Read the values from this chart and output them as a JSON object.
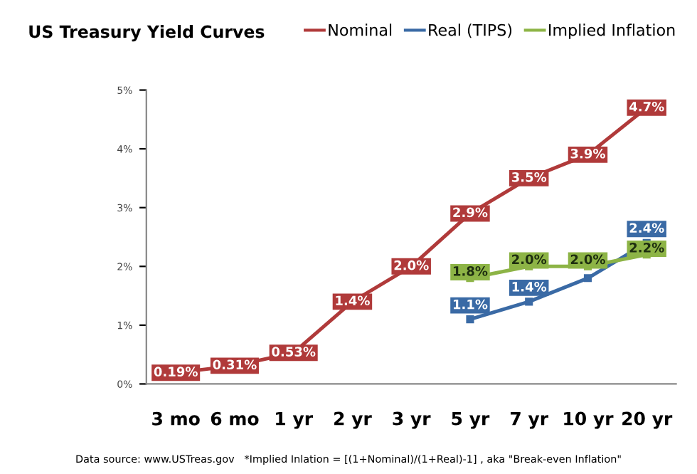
{
  "chart_data": {
    "type": "line",
    "title": "US Treasury Yield Curves",
    "categories": [
      "3 mo",
      "6 mo",
      "1 yr",
      "2 yr",
      "3 yr",
      "5 yr",
      "7 yr",
      "10 yr",
      "20 yr"
    ],
    "series": [
      {
        "name": "Nominal",
        "color": "#b03a3a",
        "values": [
          0.19,
          0.31,
          0.53,
          1.4,
          2.0,
          2.9,
          3.5,
          3.9,
          4.7
        ],
        "value_labels": [
          "0.19%",
          "0.31%",
          "0.53%",
          "1.4%",
          "2.0%",
          "2.9%",
          "3.5%",
          "3.9%",
          "4.7%"
        ]
      },
      {
        "name": "Real (TIPS)",
        "color": "#3a6aa5",
        "values": [
          null,
          null,
          null,
          null,
          null,
          1.1,
          1.4,
          1.8,
          2.4
        ],
        "value_labels": [
          null,
          null,
          null,
          null,
          null,
          "1.1%",
          "1.4%",
          null,
          "2.4%"
        ]
      },
      {
        "name": "Implied Inflation",
        "color": "#8db446",
        "values": [
          null,
          null,
          null,
          null,
          null,
          1.8,
          2.0,
          2.0,
          2.2
        ],
        "value_labels": [
          null,
          null,
          null,
          null,
          null,
          "1.8%",
          "2.0%",
          "2.0%",
          "2.2%"
        ]
      }
    ],
    "ylim": [
      0,
      5
    ],
    "yticks": [
      {
        "value": 0,
        "label": "0%"
      },
      {
        "value": 1,
        "label": "1%"
      },
      {
        "value": 2,
        "label": "2%"
      },
      {
        "value": 3,
        "label": "3%"
      },
      {
        "value": 4,
        "label": "4%"
      },
      {
        "value": 5,
        "label": "5%"
      }
    ],
    "grid": false,
    "legend": "top right",
    "marker": "square",
    "line_style": "solid",
    "annotations": [
      "Data source: www.USTreas.gov   *Implied Inlation = [(1+Nominal)/(1+Real)-1] , aka \"Break-even Inflation\""
    ]
  }
}
